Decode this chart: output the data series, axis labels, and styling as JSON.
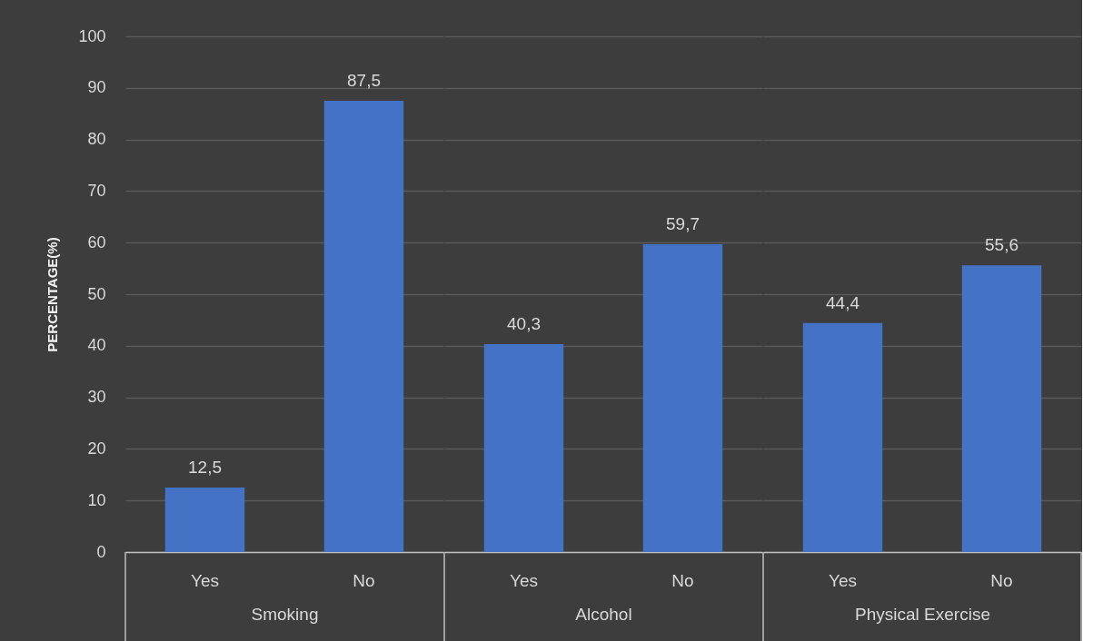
{
  "chart_data": [
    {
      "type": "bar",
      "xlabel": "Smoking",
      "ylabel": "PERCENTAGE(%)",
      "categories": [
        "Yes",
        "No"
      ],
      "values": [
        12.5,
        87.5
      ],
      "value_labels": [
        "12,5",
        "87,5"
      ],
      "color": "#4472c4",
      "ylim": [
        0,
        100
      ],
      "yticks": [
        0,
        10,
        20,
        30,
        40,
        50,
        60,
        70,
        80,
        90,
        100
      ],
      "grid": "y"
    },
    {
      "type": "bar",
      "xlabel": "Alcohol",
      "categories": [
        "Yes",
        "No"
      ],
      "values": [
        40.3,
        59.7
      ],
      "value_labels": [
        "40,3",
        "59,7"
      ],
      "color": "#4472c4",
      "ylim": [
        0,
        100
      ],
      "yticks": [
        0,
        10,
        20,
        30,
        40,
        50,
        60,
        70,
        80,
        90,
        100
      ],
      "grid": "y",
      "tick_labels": "x"
    },
    {
      "type": "bar",
      "xlabel": "Physical Exercise",
      "categories": [
        "Yes",
        "No"
      ],
      "values": [
        44.4,
        55.6
      ],
      "value_labels": [
        "44,4",
        "55,6"
      ],
      "color": "#4472c4",
      "ylim": [
        0,
        100
      ],
      "yticks": [
        0,
        10,
        20,
        30,
        40,
        50,
        60,
        70,
        80,
        90,
        100
      ],
      "grid": "y",
      "tick_labels": "x"
    }
  ]
}
